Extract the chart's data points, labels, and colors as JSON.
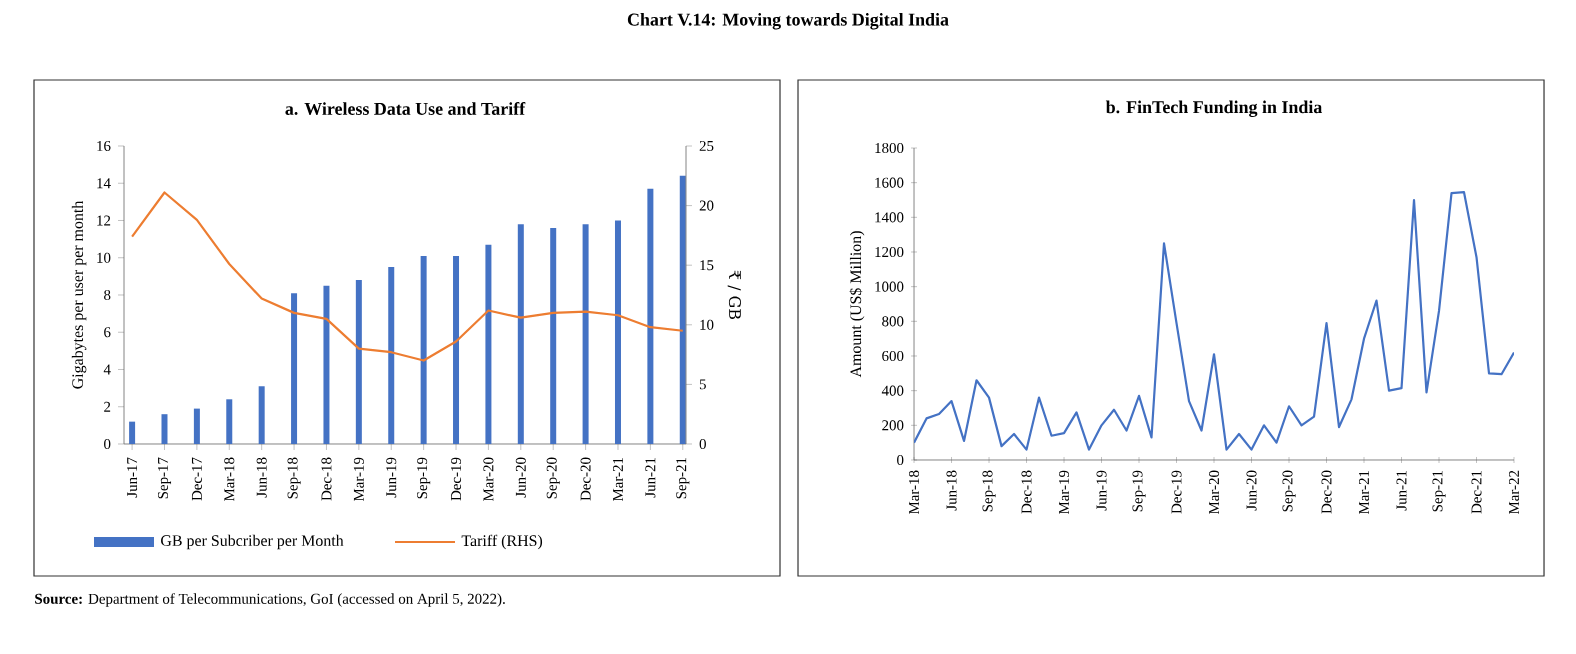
{
  "chart_data": [
    {
      "type": "bar",
      "title": "Chart V.14: Moving towards Digital India",
      "subtitle": "a. Wireless Data Use and Tariff",
      "categories": [
        "Jun-17",
        "Sep-17",
        "Dec-17",
        "Mar-18",
        "Jun-18",
        "Sep-18",
        "Dec-18",
        "Mar-19",
        "Jun-19",
        "Sep-19",
        "Dec-19",
        "Mar-20",
        "Jun-20",
        "Sep-20",
        "Dec-20",
        "Mar-21",
        "Jun-21",
        "Sep-21"
      ],
      "series": [
        {
          "name": "GB per Subcriber per Month",
          "type": "bar",
          "color": "#4472c4",
          "values": [
            1.2,
            1.6,
            1.9,
            2.4,
            3.1,
            8.1,
            8.5,
            8.8,
            9.5,
            10.1,
            10.1,
            10.7,
            11.8,
            11.6,
            11.8,
            12.0,
            13.7,
            14.4
          ]
        },
        {
          "name": "Tariff (RHS)",
          "type": "line",
          "axis": "y2",
          "color": "#ed7d31",
          "values": [
            17.4,
            21.1,
            18.8,
            15.1,
            12.2,
            11.0,
            10.5,
            8.0,
            7.7,
            7.0,
            8.6,
            11.2,
            10.6,
            11.0,
            11.1,
            10.8,
            9.8,
            9.5
          ]
        }
      ],
      "ylabel": "Gigabytes per user per month",
      "y2label": "₹ / GB",
      "ylim": [
        0,
        16
      ],
      "yticks": [
        0,
        2,
        4,
        6,
        8,
        10,
        12,
        14,
        16
      ],
      "y2lim": [
        0,
        25
      ],
      "y2ticks": [
        0,
        5,
        10,
        15,
        20,
        25
      ],
      "legend": "bottom"
    },
    {
      "type": "line",
      "title": "b. FinTech Funding in India",
      "categories": [
        "Mar-18",
        null,
        null,
        "Jun-18",
        null,
        null,
        "Sep-18",
        null,
        null,
        "Dec-18",
        null,
        null,
        "Mar-19",
        null,
        null,
        "Jun-19",
        null,
        null,
        "Sep-19",
        null,
        null,
        "Dec-19",
        null,
        null,
        "Mar-20",
        null,
        null,
        "Jun-20",
        null,
        null,
        "Sep-20",
        null,
        null,
        "Dec-20",
        null,
        null,
        "Mar-21",
        null,
        null,
        "Jun-21",
        null,
        null,
        "Sep-21",
        null,
        null,
        "Dec-21",
        null,
        null,
        "Mar-22"
      ],
      "series": [
        {
          "color": "#4472c4",
          "values": [
            100,
            240,
            265,
            340,
            110,
            460,
            360,
            80,
            150,
            60,
            360,
            140,
            155,
            275,
            60,
            200,
            290,
            170,
            370,
            130,
            1250,
            790,
            340,
            170,
            610,
            60,
            150,
            60,
            200,
            100,
            310,
            200,
            250,
            790,
            190,
            350,
            700,
            920,
            400,
            415,
            1500,
            390,
            860,
            1540,
            1545,
            1170,
            500,
            495,
            620
          ]
        }
      ],
      "ylabel": "Amount (US$ Million)",
      "ylim": [
        0,
        1800
      ],
      "yticks": [
        0,
        200,
        400,
        600,
        800,
        1000,
        1200,
        1400,
        1600,
        1800
      ],
      "annotations": [
        "**Source:** Department of Telecommunications, GoI (accessed on April 5, 2022)."
      ]
    }
  ]
}
